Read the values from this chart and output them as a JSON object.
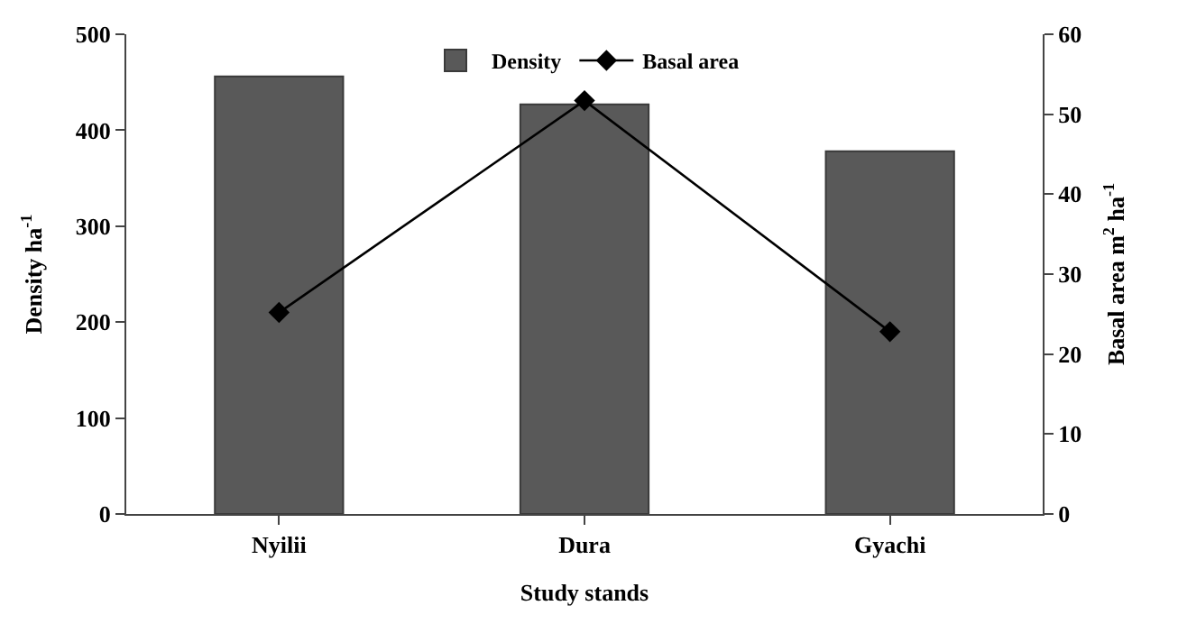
{
  "chart_data": {
    "type": "bar",
    "xlabel": "Study stands",
    "ylabel": "Density ha$^{-1}$",
    "y2label": "Basal area m$^{2}$ ha$^{-1}$",
    "categories": [
      "Nyilii",
      "Dura",
      "Gyachi"
    ],
    "series": [
      {
        "name": "Density",
        "color": "#595959",
        "values": [
          456,
          427,
          378
        ]
      },
      {
        "name": "Basal area",
        "type": "line",
        "axis": "y2",
        "color": "#000000",
        "values": [
          25.2,
          51.7,
          22.8
        ]
      }
    ],
    "ylim": [
      0,
      500
    ],
    "yticks": [
      0,
      100,
      200,
      300,
      400,
      500
    ],
    "y2lim": [
      0,
      60
    ],
    "y2ticks": [
      0,
      10,
      20,
      30,
      40,
      50,
      60
    ],
    "marker": "diamond",
    "line_style": "solid",
    "legend": "top"
  }
}
